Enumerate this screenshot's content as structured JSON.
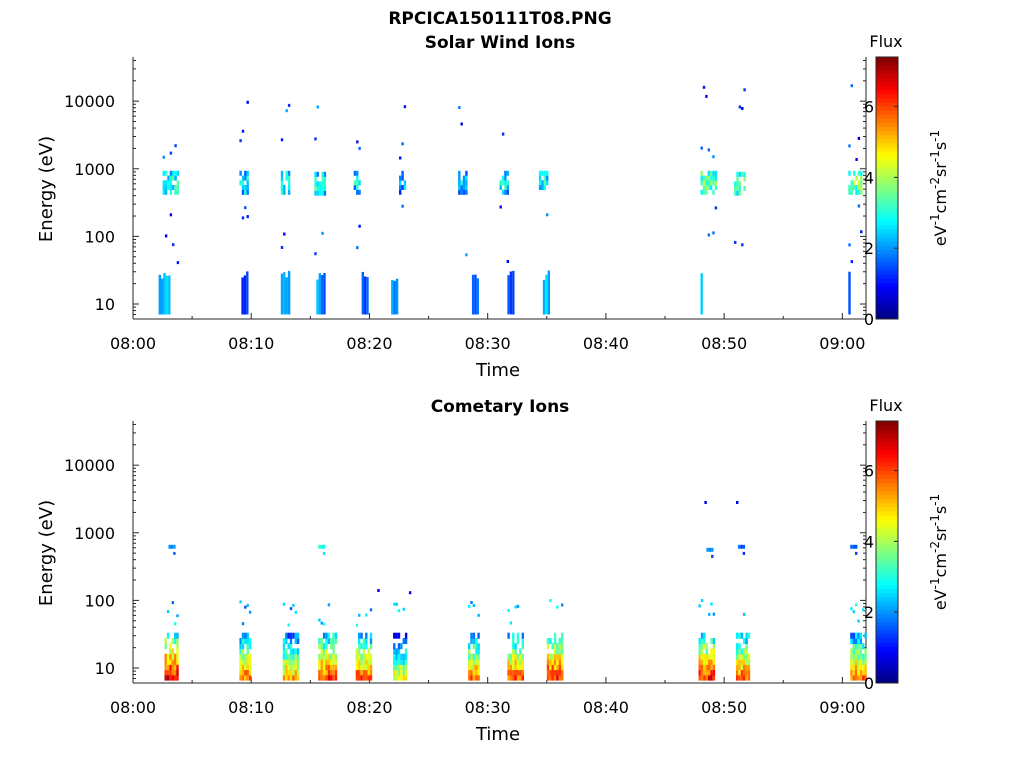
{
  "figure": {
    "title": "RPCICA150111T08.PNG"
  },
  "chart_data": [
    {
      "type": "heatmap",
      "title": "Solar Wind Ions",
      "xlabel": "Time",
      "ylabel": "Energy (eV)",
      "yscale": "log",
      "xlim": [
        "08:00",
        "09:02"
      ],
      "ylim": [
        6,
        45000
      ],
      "xticks": [
        "08:00",
        "08:10",
        "08:20",
        "08:30",
        "08:40",
        "08:50",
        "09:00"
      ],
      "yticks": [
        "10",
        "100",
        "1000",
        "10000"
      ],
      "colorbar": {
        "label": "Flux",
        "unit": "eV-1cm-2sr-1s-1",
        "range": [
          0,
          7.4
        ],
        "ticks": [
          "0",
          "2",
          "4",
          "6"
        ]
      },
      "bursts": [
        {
          "t": "08:02:30",
          "w": 1.4,
          "e": 620,
          "s": 3.2
        },
        {
          "t": "08:09:00",
          "w": 0.8,
          "e": 620,
          "s": 2.8
        },
        {
          "t": "08:12:30",
          "w": 0.8,
          "e": 620,
          "s": 3.0
        },
        {
          "t": "08:15:20",
          "w": 1.0,
          "e": 600,
          "s": 3.1
        },
        {
          "t": "08:18:40",
          "w": 0.6,
          "e": 620,
          "s": 2.6
        },
        {
          "t": "08:22:30",
          "w": 0.6,
          "e": 620,
          "s": 2.4
        },
        {
          "t": "08:27:30",
          "w": 0.8,
          "e": 620,
          "s": 2.6
        },
        {
          "t": "08:31:00",
          "w": 0.8,
          "e": 620,
          "s": 2.9
        },
        {
          "t": "08:34:20",
          "w": 0.8,
          "e": 620,
          "s": 2.8
        },
        {
          "t": "08:48:00",
          "w": 1.4,
          "e": 620,
          "s": 3.6
        },
        {
          "t": "08:50:50",
          "w": 1.0,
          "e": 600,
          "s": 3.5
        },
        {
          "t": "09:00:30",
          "w": 1.2,
          "e": 620,
          "s": 3.9
        }
      ],
      "low_energy": [
        {
          "t": "08:02:10",
          "w": 0.9,
          "s": 2.5
        },
        {
          "t": "08:09:10",
          "w": 0.5,
          "s": 1.5
        },
        {
          "t": "08:12:30",
          "w": 0.8,
          "s": 2.2
        },
        {
          "t": "08:15:30",
          "w": 0.8,
          "s": 2.0
        },
        {
          "t": "08:19:20",
          "w": 0.6,
          "s": 1.6
        },
        {
          "t": "08:21:50",
          "w": 0.5,
          "s": 2.0
        },
        {
          "t": "08:28:40",
          "w": 0.5,
          "s": 1.8
        },
        {
          "t": "08:31:40",
          "w": 0.5,
          "s": 1.6
        },
        {
          "t": "08:34:40",
          "w": 0.6,
          "s": 2.3
        },
        {
          "t": "08:48:00",
          "w": 0.3,
          "s": 2.5
        },
        {
          "t": "09:00:30",
          "w": 0.3,
          "s": 1.2
        }
      ]
    },
    {
      "type": "heatmap",
      "title": "Cometary Ions",
      "xlabel": "Time",
      "ylabel": "Energy (eV)",
      "yscale": "log",
      "xlim": [
        "08:00",
        "09:02"
      ],
      "ylim": [
        6,
        45000
      ],
      "xticks": [
        "08:00",
        "08:10",
        "08:20",
        "08:30",
        "08:40",
        "08:50",
        "09:00"
      ],
      "yticks": [
        "10",
        "100",
        "1000",
        "10000"
      ],
      "colorbar": {
        "label": "Flux",
        "unit": "eV-1cm-2sr-1s-1",
        "range": [
          0,
          7.4
        ],
        "ticks": [
          "0",
          "2",
          "4",
          "6"
        ]
      },
      "bursts": [
        {
          "t": "08:02:40",
          "w": 1.2,
          "s": 6.6
        },
        {
          "t": "08:09:00",
          "w": 0.9,
          "s": 5.8
        },
        {
          "t": "08:12:40",
          "w": 1.4,
          "s": 5.3
        },
        {
          "t": "08:15:40",
          "w": 1.5,
          "s": 6.0
        },
        {
          "t": "08:18:50",
          "w": 1.4,
          "s": 5.8
        },
        {
          "t": "08:22:00",
          "w": 1.2,
          "s": 4.6
        },
        {
          "t": "08:28:20",
          "w": 0.9,
          "s": 5.6
        },
        {
          "t": "08:31:40",
          "w": 1.3,
          "s": 5.9
        },
        {
          "t": "08:35:00",
          "w": 1.4,
          "s": 6.3
        },
        {
          "t": "08:47:50",
          "w": 1.3,
          "s": 6.2
        },
        {
          "t": "08:51:00",
          "w": 1.2,
          "s": 5.9
        },
        {
          "t": "09:00:40",
          "w": 1.3,
          "s": 5.7
        }
      ],
      "high_energy": [
        {
          "t": "08:03:00",
          "e": 620,
          "s": 2.0
        },
        {
          "t": "08:15:40",
          "e": 620,
          "s": 3.0
        },
        {
          "t": "08:48:30",
          "e": 560,
          "s": 1.8
        },
        {
          "t": "08:51:10",
          "e": 620,
          "s": 1.6
        },
        {
          "t": "09:00:40",
          "e": 620,
          "s": 1.8
        }
      ]
    }
  ]
}
